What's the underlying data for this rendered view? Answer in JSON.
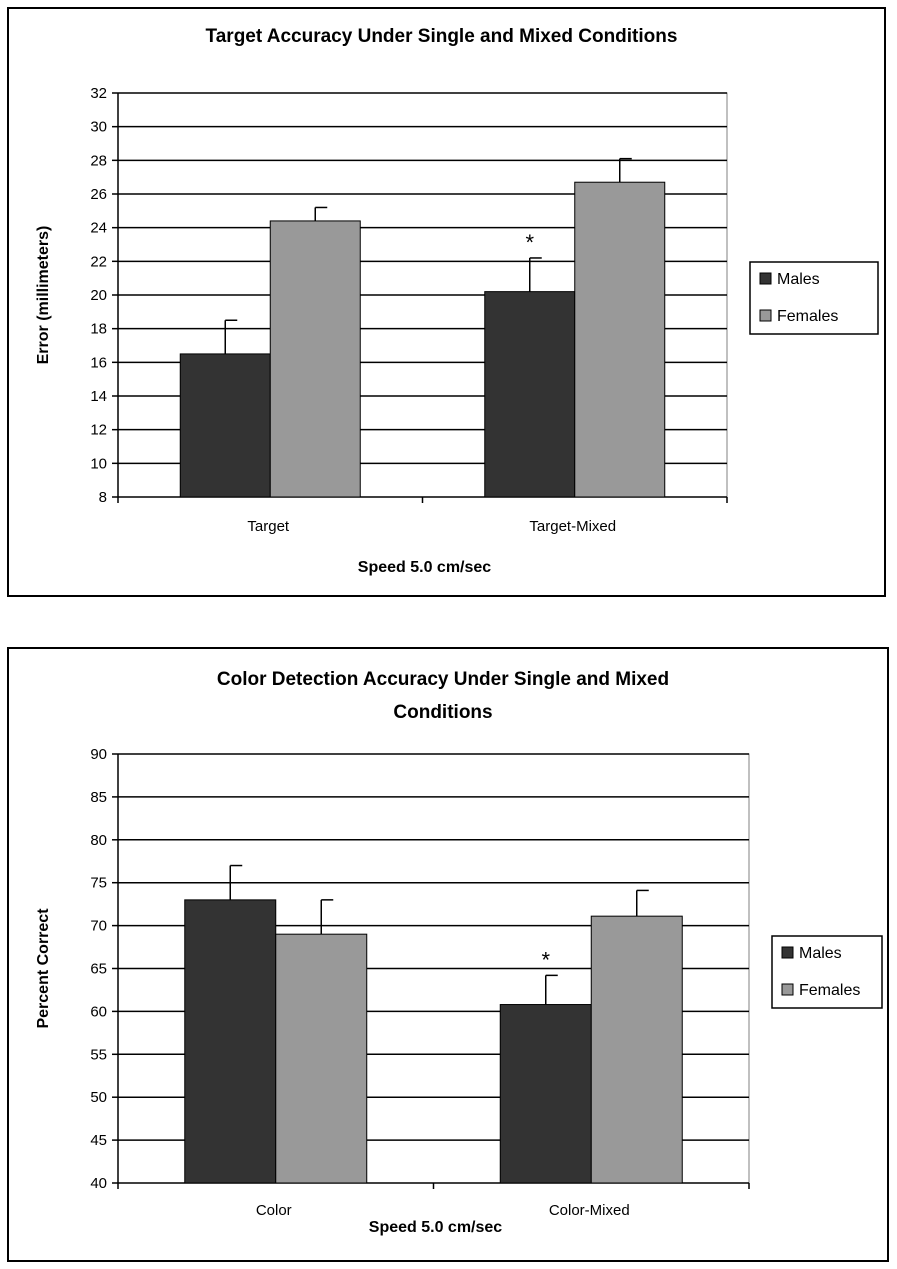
{
  "chart_data": [
    {
      "type": "bar",
      "title": [
        "Target Accuracy Under Single and Mixed Conditions"
      ],
      "xlabel": "Speed 5.0 cm/sec",
      "ylabel": "Error (millimeters)",
      "categories": [
        "Target",
        "Target-Mixed"
      ],
      "series": [
        {
          "name": "Males",
          "values": [
            16.5,
            20.2
          ],
          "errors": [
            2.0,
            2.0
          ],
          "color": "#333333"
        },
        {
          "name": "Females",
          "values": [
            24.4,
            26.7
          ],
          "errors": [
            0.8,
            1.4
          ],
          "color": "#999999"
        }
      ],
      "ylim": [
        8,
        32
      ],
      "yticks": [
        8,
        10,
        12,
        14,
        16,
        18,
        20,
        22,
        24,
        26,
        28,
        30,
        32
      ],
      "grid": true,
      "legend": "right",
      "annotations": [
        {
          "text": "*",
          "category": "Target-Mixed",
          "series": "Males"
        }
      ]
    },
    {
      "type": "bar",
      "title": [
        "Color Detection Accuracy Under Single and Mixed",
        "Conditions"
      ],
      "xlabel": "Speed 5.0 cm/sec",
      "ylabel": "Percent Correct",
      "categories": [
        "Color",
        "Color-Mixed"
      ],
      "series": [
        {
          "name": "Males",
          "values": [
            73.0,
            60.8
          ],
          "errors": [
            4.0,
            3.4
          ],
          "color": "#333333"
        },
        {
          "name": "Females",
          "values": [
            69.0,
            71.1
          ],
          "errors": [
            4.0,
            3.0
          ],
          "color": "#999999"
        }
      ],
      "ylim": [
        40,
        90
      ],
      "yticks": [
        40,
        45,
        50,
        55,
        60,
        65,
        70,
        75,
        80,
        85,
        90
      ],
      "grid": true,
      "legend": "right",
      "annotations": [
        {
          "text": "*",
          "category": "Color-Mixed",
          "series": "Males"
        }
      ]
    }
  ]
}
